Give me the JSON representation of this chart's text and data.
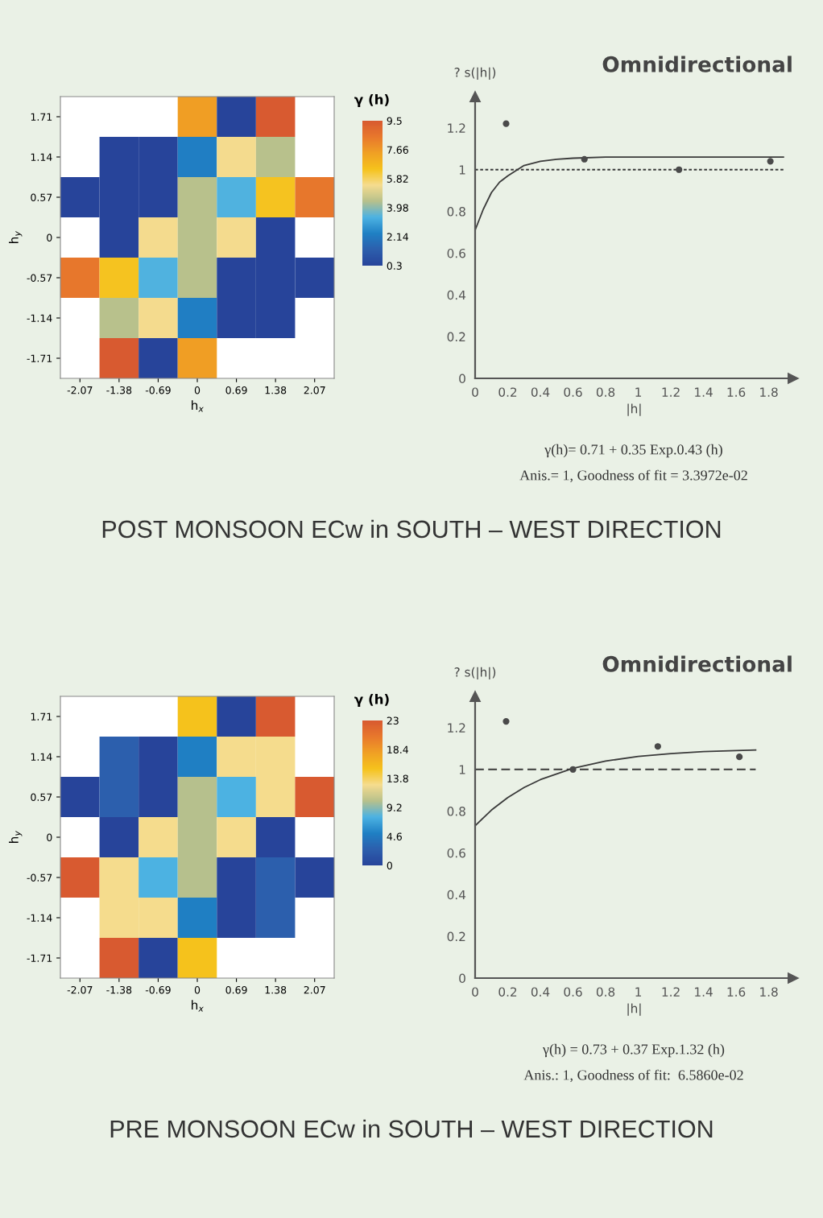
{
  "chart_data": [
    {
      "type": "heatmap",
      "xlabel": "h$_{x}$",
      "ylabel": "h$_{y}$",
      "clabel": "γ (h)",
      "categories": [
        "-2.07",
        "-1.38",
        "-0.69",
        "0",
        "0.69",
        "1.38",
        "2.07"
      ],
      "y_categories": [
        "1.71",
        "1.14",
        "0.57",
        "0",
        "-0.57",
        "-1.14",
        "-1.71"
      ],
      "cells": [
        [
          null,
          null,
          null,
          7.5,
          0.3,
          9.5,
          null
        ],
        [
          null,
          0.3,
          0.3,
          2.3,
          5.4,
          4.4,
          null
        ],
        [
          0.3,
          0.3,
          0.3,
          4.4,
          3.4,
          6.4,
          8.5
        ],
        [
          null,
          0.3,
          5.4,
          4.4,
          5.4,
          0.3,
          null
        ],
        [
          8.5,
          6.4,
          3.4,
          4.4,
          0.3,
          0.3,
          0.3
        ],
        [
          null,
          4.4,
          5.4,
          2.3,
          0.3,
          0.3,
          null
        ],
        [
          null,
          9.5,
          0.3,
          7.5,
          null,
          null,
          null
        ]
      ],
      "colors": [
        "#27449a",
        "#2c5fad",
        "#1f80c4",
        "#4cb2e2",
        "#b7c08c",
        "#f5dc8e",
        "#f5c21c",
        "#f0a024",
        "#e8782c",
        "#d85a30"
      ],
      "clim": [
        0.3,
        9.5
      ],
      "cticks": [
        {
          "value": 9.5,
          "label": "9.5"
        },
        {
          "value": 7.66,
          "label": "7.66"
        },
        {
          "value": 5.82,
          "label": "5.82"
        },
        {
          "value": 3.98,
          "label": "3.98"
        },
        {
          "value": 2.14,
          "label": "2.14"
        },
        {
          "value": 0.3,
          "label": "0.3"
        }
      ]
    },
    {
      "type": "line",
      "title": "Omnidirectional",
      "xlabel": "|h|",
      "ylabel": "? s(|h|)",
      "xlim": [
        0,
        1.95
      ],
      "ylim": [
        0,
        1.35
      ],
      "xticks": [
        0,
        0.2,
        0.4,
        0.6,
        0.8,
        1,
        1.2,
        1.4,
        1.6,
        1.8
      ],
      "yticks": [
        0,
        0.2,
        0.4,
        0.6,
        0.8,
        1,
        1.2
      ],
      "series": [
        {
          "type": "scatter",
          "marker": "circle",
          "color": "#4a4a4a",
          "x": [
            0.19,
            0.67,
            1.25,
            1.81
          ],
          "values": [
            1.22,
            1.05,
            1.0,
            1.04
          ]
        },
        {
          "type": "line",
          "marker": "none",
          "line_style": "solid",
          "color": "#3a3a3a",
          "x": [
            0,
            0.05,
            0.1,
            0.15,
            0.2,
            0.3,
            0.4,
            0.5,
            0.6,
            0.8,
            1.0,
            1.89
          ],
          "values": [
            0.71,
            0.81,
            0.89,
            0.94,
            0.97,
            1.02,
            1.04,
            1.05,
            1.055,
            1.06,
            1.06,
            1.06
          ]
        },
        {
          "type": "line",
          "marker": "none",
          "line_style": "dotted",
          "color": "#3a3a3a",
          "x": [
            0,
            1.89
          ],
          "values": [
            1,
            1
          ]
        }
      ],
      "annotations": [
        "γ(h)= 0.71 + 0.35 Exp.0.43 (h)",
        "Anis.= 1, Goodness of fit = 3.3972e-02",
        "POST MONSOON ECw in SOUTH – WEST DIRECTION"
      ]
    },
    {
      "type": "heatmap",
      "xlabel": "h$_{x}$",
      "ylabel": "h$_{y}$",
      "clabel": "γ (h)",
      "categories": [
        "-2.07",
        "-1.38",
        "-0.69",
        "0",
        "0.69",
        "1.38",
        "2.07"
      ],
      "y_categories": [
        "1.71",
        "1.14",
        "0.57",
        "0",
        "-0.57",
        "-1.14",
        "-1.71"
      ],
      "cells": [
        [
          null,
          null,
          null,
          15.3,
          0,
          23,
          null
        ],
        [
          null,
          2.6,
          0,
          5.1,
          12.8,
          12.8,
          null
        ],
        [
          0,
          2.6,
          0,
          10.2,
          7.7,
          12.8,
          23
        ],
        [
          null,
          0,
          12.8,
          10.2,
          12.8,
          0,
          null
        ],
        [
          23,
          12.8,
          7.7,
          10.2,
          0,
          2.6,
          0
        ],
        [
          null,
          12.8,
          12.8,
          5.1,
          0,
          2.6,
          null
        ],
        [
          null,
          23,
          0,
          15.3,
          null,
          null,
          null
        ]
      ],
      "colors": [
        "#27449a",
        "#2c5fad",
        "#1f80c4",
        "#4cb2e2",
        "#b7c08c",
        "#f5dc8e",
        "#f5c21c",
        "#f0a024",
        "#e8782c",
        "#d85a30"
      ],
      "clim": [
        0,
        23
      ],
      "cticks": [
        23,
        18.4,
        13.8,
        9.2,
        4.6,
        0
      ]
    },
    {
      "type": "line",
      "title": "Omnidirectional",
      "xlabel": "|h|",
      "ylabel": "? s(|h|)",
      "xlim": [
        0,
        1.95
      ],
      "ylim": [
        0,
        1.35
      ],
      "xticks": [
        0,
        0.2,
        0.4,
        0.6,
        0.8,
        1,
        1.2,
        1.4,
        1.6,
        1.8
      ],
      "yticks": [
        0,
        0.2,
        0.4,
        0.6,
        0.8,
        1,
        1.2
      ],
      "series": [
        {
          "type": "scatter",
          "marker": "circle",
          "color": "#4a4a4a",
          "x": [
            0.19,
            0.6,
            1.12,
            1.62
          ],
          "values": [
            1.23,
            1.0,
            1.11,
            1.06
          ]
        },
        {
          "type": "line",
          "marker": "none",
          "line_style": "solid",
          "color": "#3a3a3a",
          "x": [
            0,
            0.1,
            0.2,
            0.3,
            0.4,
            0.6,
            0.8,
            1.0,
            1.2,
            1.4,
            1.6,
            1.72
          ],
          "values": [
            0.73,
            0.805,
            0.865,
            0.913,
            0.951,
            1.005,
            1.04,
            1.062,
            1.076,
            1.085,
            1.09,
            1.093
          ]
        },
        {
          "type": "line",
          "marker": "none",
          "line_style": "dashed",
          "color": "#3a3a3a",
          "x": [
            0,
            1.72
          ],
          "values": [
            1,
            1
          ]
        }
      ],
      "annotations": [
        "γ(h) = 0.73 + 0.37 Exp.1.32 (h)",
        "Anis.: 1, Goodness of fit:  6.5860e-02",
        "PRE MONSOON ECw in SOUTH – WEST DIRECTION"
      ]
    }
  ]
}
